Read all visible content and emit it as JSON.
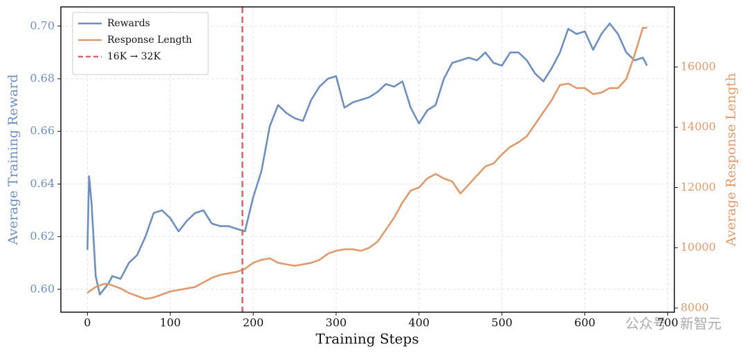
{
  "chart_data": {
    "type": "line",
    "xlabel": "Training Steps",
    "ylabel": "Average Training Reward",
    "y2label": "Average Response Length",
    "x": [
      0,
      2,
      5,
      10,
      15,
      20,
      25,
      30,
      40,
      50,
      60,
      70,
      80,
      90,
      100,
      110,
      120,
      130,
      140,
      150,
      160,
      170,
      180,
      190,
      200,
      210,
      220,
      230,
      240,
      250,
      260,
      270,
      280,
      290,
      300,
      310,
      320,
      330,
      340,
      350,
      360,
      370,
      380,
      390,
      400,
      410,
      420,
      430,
      440,
      450,
      460,
      470,
      480,
      490,
      500,
      510,
      520,
      530,
      540,
      550,
      560,
      570,
      580,
      590,
      600,
      610,
      620,
      630,
      640,
      650,
      660,
      670,
      675
    ],
    "series": [
      {
        "name": "Rewards",
        "color": "#6d8fbf",
        "axis": "y",
        "values": [
          0.615,
          0.643,
          0.633,
          0.605,
          0.598,
          0.6,
          0.602,
          0.605,
          0.604,
          0.61,
          0.613,
          0.62,
          0.629,
          0.63,
          0.627,
          0.622,
          0.626,
          0.629,
          0.63,
          0.625,
          0.624,
          0.624,
          0.623,
          0.622,
          0.635,
          0.645,
          0.662,
          0.67,
          0.667,
          0.665,
          0.664,
          0.672,
          0.677,
          0.68,
          0.681,
          0.669,
          0.671,
          0.672,
          0.673,
          0.675,
          0.678,
          0.677,
          0.679,
          0.669,
          0.663,
          0.668,
          0.67,
          0.68,
          0.686,
          0.687,
          0.688,
          0.687,
          0.69,
          0.686,
          0.685,
          0.69,
          0.69,
          0.687,
          0.682,
          0.679,
          0.684,
          0.69,
          0.699,
          0.697,
          0.698,
          0.691,
          0.697,
          0.701,
          0.697,
          0.69,
          0.687,
          0.688,
          0.685
        ]
      },
      {
        "name": "Response Length",
        "color": "#e0996b",
        "axis": "y2",
        "values": [
          8500,
          8550,
          8600,
          8700,
          8750,
          8800,
          8800,
          8750,
          8650,
          8500,
          8400,
          8300,
          8350,
          8450,
          8550,
          8600,
          8650,
          8700,
          8850,
          9000,
          9100,
          9150,
          9200,
          9300,
          9500,
          9600,
          9650,
          9500,
          9450,
          9400,
          9450,
          9500,
          9600,
          9800,
          9900,
          9950,
          9950,
          9900,
          10000,
          10200,
          10600,
          11000,
          11500,
          11900,
          12000,
          12300,
          12450,
          12300,
          12200,
          11800,
          12100,
          12400,
          12700,
          12800,
          13100,
          13350,
          13500,
          13700,
          14100,
          14500,
          14900,
          15400,
          15450,
          15300,
          15300,
          15100,
          15150,
          15300,
          15300,
          15600,
          16400,
          17300,
          17300
        ]
      }
    ],
    "vline": {
      "x": 187,
      "name": "16K → 32K",
      "color": "#d9666b"
    },
    "xlim": [
      -32,
      708
    ],
    "xticks": [
      0,
      100,
      200,
      300,
      400,
      500,
      600,
      700
    ],
    "ylim": [
      0.5913,
      0.7073
    ],
    "yticks": [
      {
        "value": 0.6,
        "label": "0.60"
      },
      {
        "value": 0.62,
        "label": "0.62"
      },
      {
        "value": 0.64,
        "label": "0.64"
      },
      {
        "value": 0.66,
        "label": "0.66"
      },
      {
        "value": 0.68,
        "label": "0.68"
      },
      {
        "value": 0.7,
        "label": "0.70"
      }
    ],
    "y2lim": [
      7862,
      17994
    ],
    "y2ticks": [
      8000,
      10000,
      12000,
      14000,
      16000
    ],
    "grid": true,
    "legend": "upper left",
    "watermark": "公众号 · 新智元"
  }
}
